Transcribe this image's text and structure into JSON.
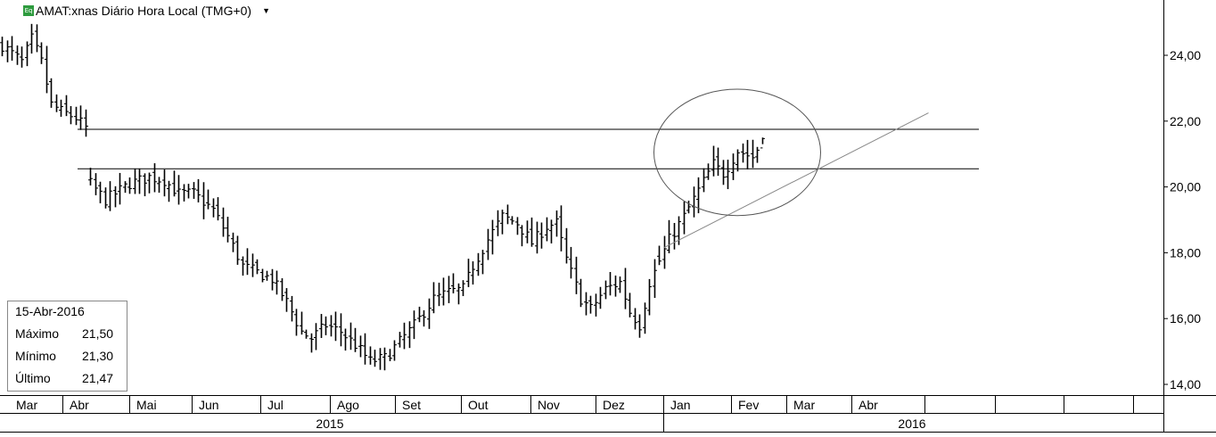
{
  "header": {
    "icon_label": "Eq",
    "title": "AMAT:xnas Diário Hora Local (TMG+0)"
  },
  "info": {
    "date": "15-Abr-2016",
    "rows": [
      {
        "label": "Máximo",
        "value": "21,50"
      },
      {
        "label": "Mínimo",
        "value": "21,30"
      },
      {
        "label": "Último",
        "value": "21,47"
      }
    ]
  },
  "chart_data": {
    "type": "bar",
    "title": "AMAT:xnas Diário Hora Local (TMG+0)",
    "ylim": [
      14,
      25.5
    ],
    "y_ticks": [
      "24,00",
      "22,00",
      "20,00",
      "18,00",
      "16,00",
      "14,00"
    ],
    "y_tick_values": [
      24,
      22,
      20,
      18,
      16,
      14
    ],
    "months": [
      "Mar",
      "Abr",
      "Mai",
      "Jun",
      "Jul",
      "Ago",
      "Set",
      "Out",
      "Nov",
      "Dez",
      "Jan",
      "Fev",
      "Mar",
      "Abr",
      "",
      "",
      "",
      ""
    ],
    "years": [
      "2015",
      "2016"
    ],
    "price_path": [
      [
        0,
        24.3
      ],
      [
        4,
        23.8
      ],
      [
        6,
        24.5
      ],
      [
        8,
        23.8
      ],
      [
        10,
        22.5
      ],
      [
        12,
        22.3
      ],
      [
        15,
        22.1
      ],
      [
        17,
        21.8
      ],
      [
        18,
        20.1
      ],
      [
        21,
        19.6
      ],
      [
        26,
        20.1
      ],
      [
        30,
        20.3
      ],
      [
        33,
        20.2
      ],
      [
        36,
        19.8
      ],
      [
        39,
        19.8
      ],
      [
        43,
        19.3
      ],
      [
        46,
        18.5
      ],
      [
        49,
        17.6
      ],
      [
        52,
        17.4
      ],
      [
        55,
        17.2
      ],
      [
        58,
        16.5
      ],
      [
        61,
        15.6
      ],
      [
        63,
        15.4
      ],
      [
        66,
        15.8
      ],
      [
        69,
        15.6
      ],
      [
        72,
        15.2
      ],
      [
        75,
        14.7
      ],
      [
        78,
        14.8
      ],
      [
        81,
        15.3
      ],
      [
        84,
        15.8
      ],
      [
        88,
        16.6
      ],
      [
        91,
        16.8
      ],
      [
        94,
        16.9
      ],
      [
        96,
        17.6
      ],
      [
        99,
        18.4
      ],
      [
        102,
        19.1
      ],
      [
        105,
        18.9
      ],
      [
        108,
        18.3
      ],
      [
        111,
        18.8
      ],
      [
        113,
        18.9
      ],
      [
        115,
        17.8
      ],
      [
        118,
        16.6
      ],
      [
        120,
        16.3
      ],
      [
        123,
        16.9
      ],
      [
        126,
        17.1
      ],
      [
        128,
        16.2
      ],
      [
        130,
        15.8
      ],
      [
        132,
        17.1
      ],
      [
        136,
        18.4
      ],
      [
        139,
        19.1
      ],
      [
        142,
        19.9
      ],
      [
        145,
        20.7
      ],
      [
        147,
        20.4
      ],
      [
        150,
        21.1
      ],
      [
        153,
        20.9
      ],
      [
        155,
        21.4
      ]
    ],
    "gap_index": 134,
    "total_bars": 156,
    "horizontal_lines": [
      {
        "y": 21.75,
        "from_index": 14,
        "to_index": 216
      },
      {
        "y": 20.55,
        "from_index": 14,
        "to_index": 216
      }
    ],
    "trendline": {
      "from": [
        135,
        18.15
      ],
      "to": [
        189,
        22.25
      ]
    },
    "ellipse": {
      "center": [
        150,
        21.05
      ],
      "rx_bars": 17,
      "ry": 1.92
    },
    "grid": false,
    "legend": "none"
  }
}
